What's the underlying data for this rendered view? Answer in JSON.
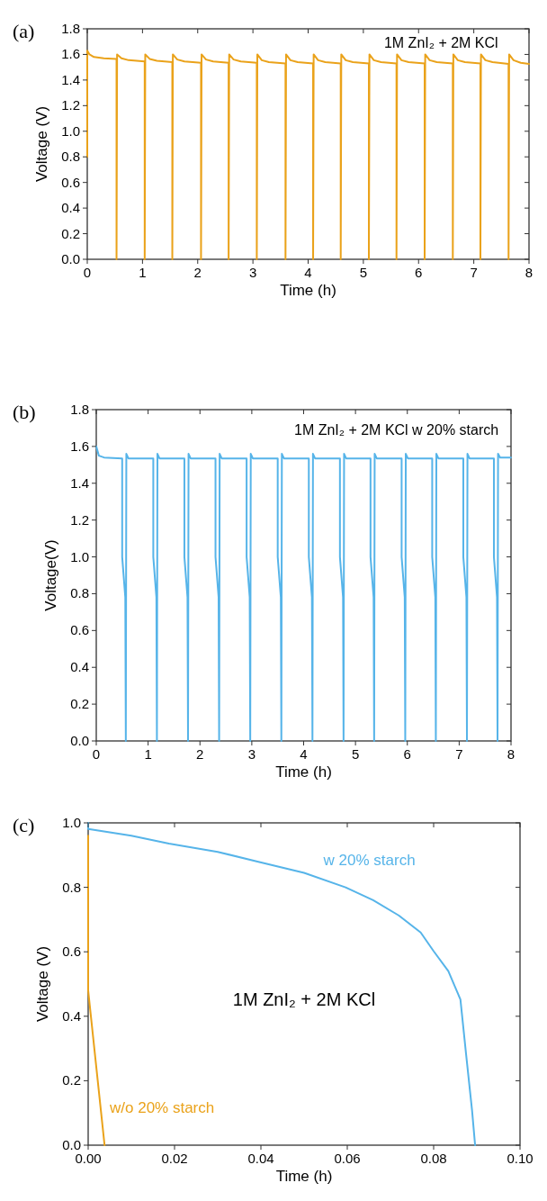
{
  "chart_data": [
    {
      "type": "line",
      "title": "(a)",
      "xlabel": "Time (h)",
      "ylabel": "Voltage (V)",
      "annotations": [
        "1M ZnI₂ + 2M KCl"
      ],
      "xlim": [
        0,
        8
      ],
      "ylim": [
        0,
        1.8
      ],
      "xticks": [
        0,
        1,
        2,
        3,
        4,
        5,
        6,
        7,
        8
      ],
      "yticks": [
        {
          "value": 0,
          "label": "0.0"
        },
        {
          "value": 0.2,
          "label": "0.2"
        },
        {
          "value": 0.4,
          "label": "0.4"
        },
        {
          "value": 0.6,
          "label": "0.6"
        },
        {
          "value": 0.8,
          "label": "0.8"
        },
        {
          "value": 1,
          "label": "1.0"
        },
        {
          "value": 1.2,
          "label": "1.2"
        },
        {
          "value": 1.4,
          "label": "1.4"
        },
        {
          "value": 1.6,
          "label": "1.6"
        },
        {
          "value": 1.8,
          "label": "1.8"
        }
      ],
      "series": [
        {
          "color": "#eaa21a",
          "x": [
            0,
            0,
            0.04,
            0.12,
            0.3,
            0.53,
            0.53,
            0.54,
            0.62,
            0.75,
            1.04,
            1.04,
            1.05,
            1.13,
            1.26,
            1.54,
            1.54,
            1.55,
            1.63,
            1.76,
            2.06,
            2.06,
            2.07,
            2.15,
            2.28,
            2.56,
            2.56,
            2.57,
            2.65,
            2.78,
            3.07,
            3.07,
            3.08,
            3.16,
            3.29,
            3.59,
            3.59,
            3.6,
            3.68,
            3.81,
            4.09,
            4.09,
            4.1,
            4.18,
            4.31,
            4.59,
            4.59,
            4.6,
            4.68,
            4.81,
            5.1,
            5.1,
            5.11,
            5.19,
            5.32,
            5.6,
            5.6,
            5.61,
            5.69,
            5.82,
            6.11,
            6.11,
            6.12,
            6.2,
            6.33,
            6.62,
            6.62,
            6.63,
            6.71,
            6.84,
            7.12,
            7.12,
            7.13,
            7.21,
            7.34,
            7.63,
            7.63,
            7.64,
            7.72,
            7.85,
            8
          ],
          "values": [
            0.8,
            1.63,
            1.6,
            1.58,
            1.57,
            1.565,
            0,
            1.6,
            1.57,
            1.555,
            1.545,
            0,
            1.6,
            1.565,
            1.55,
            1.54,
            0,
            1.6,
            1.56,
            1.545,
            1.535,
            0,
            1.6,
            1.56,
            1.545,
            1.535,
            0,
            1.6,
            1.56,
            1.545,
            1.535,
            0,
            1.6,
            1.555,
            1.54,
            1.53,
            0,
            1.6,
            1.555,
            1.54,
            1.53,
            0,
            1.6,
            1.555,
            1.54,
            1.53,
            0,
            1.6,
            1.555,
            1.54,
            1.53,
            0,
            1.6,
            1.555,
            1.54,
            1.53,
            0,
            1.6,
            1.555,
            1.54,
            1.53,
            0,
            1.6,
            1.555,
            1.54,
            1.53,
            0,
            1.6,
            1.555,
            1.54,
            1.53,
            0,
            1.6,
            1.555,
            1.54,
            1.525,
            0,
            1.6,
            1.555,
            1.535,
            1.525
          ]
        }
      ]
    },
    {
      "type": "line",
      "title": "(b)",
      "xlabel": "Time (h)",
      "ylabel": "Voltage(V)",
      "annotations": [
        "1M ZnI₂ + 2M KCl w 20% starch"
      ],
      "xlim": [
        0,
        8
      ],
      "ylim": [
        0,
        1.8
      ],
      "xticks": [
        0,
        1,
        2,
        3,
        4,
        5,
        6,
        7,
        8
      ],
      "yticks": [
        {
          "value": 0,
          "label": "0.0"
        },
        {
          "value": 0.2,
          "label": "0.2"
        },
        {
          "value": 0.4,
          "label": "0.4"
        },
        {
          "value": 0.6,
          "label": "0.6"
        },
        {
          "value": 0.8,
          "label": "0.8"
        },
        {
          "value": 1,
          "label": "1.0"
        },
        {
          "value": 1.2,
          "label": "1.2"
        },
        {
          "value": 1.4,
          "label": "1.4"
        },
        {
          "value": 1.6,
          "label": "1.6"
        },
        {
          "value": 1.8,
          "label": "1.8"
        }
      ],
      "series": [
        {
          "color": "#56b4e9",
          "x": [
            0,
            0.05,
            0.15,
            0.5,
            0.5,
            0.56,
            0.57,
            0.58,
            0.62,
            1.1,
            1.1,
            1.16,
            1.17,
            1.18,
            1.22,
            1.7,
            1.7,
            1.76,
            1.77,
            1.78,
            1.82,
            2.3,
            2.3,
            2.36,
            2.37,
            2.38,
            2.42,
            2.9,
            2.9,
            2.96,
            2.97,
            2.98,
            3.02,
            3.5,
            3.5,
            3.56,
            3.57,
            3.58,
            3.62,
            4.1,
            4.1,
            4.16,
            4.17,
            4.18,
            4.22,
            4.7,
            4.7,
            4.76,
            4.77,
            4.78,
            4.82,
            5.29,
            5.29,
            5.35,
            5.36,
            5.37,
            5.41,
            5.89,
            5.89,
            5.95,
            5.96,
            5.97,
            6.01,
            6.48,
            6.48,
            6.54,
            6.55,
            6.56,
            6.6,
            7.08,
            7.08,
            7.14,
            7.15,
            7.16,
            7.2,
            7.67,
            7.67,
            7.73,
            7.74,
            7.75,
            7.79,
            8
          ],
          "values": [
            1.6,
            1.55,
            1.54,
            1.535,
            1,
            0.78,
            0,
            1.56,
            1.535,
            1.535,
            1,
            0.78,
            0,
            1.56,
            1.535,
            1.535,
            1,
            0.78,
            0,
            1.56,
            1.535,
            1.535,
            1,
            0.78,
            0,
            1.56,
            1.535,
            1.535,
            1,
            0.78,
            0,
            1.56,
            1.535,
            1.535,
            1,
            0.78,
            0,
            1.56,
            1.535,
            1.535,
            1,
            0.78,
            0,
            1.56,
            1.535,
            1.535,
            1,
            0.78,
            0,
            1.56,
            1.535,
            1.535,
            1,
            0.78,
            0,
            1.56,
            1.535,
            1.535,
            1,
            0.78,
            0,
            1.56,
            1.535,
            1.535,
            1,
            0.78,
            0,
            1.56,
            1.535,
            1.535,
            1,
            0.78,
            0,
            1.56,
            1.535,
            1.535,
            1,
            0.78,
            0,
            1.56,
            1.54,
            1.54
          ]
        }
      ]
    },
    {
      "type": "line",
      "title": "(c)",
      "xlabel": "Time (h)",
      "ylabel": "Voltage (V)",
      "annotations": [
        "1M ZnI₂ + 2M KCl"
      ],
      "xlim": [
        0,
        0.1
      ],
      "ylim": [
        0,
        1
      ],
      "xticks": [
        {
          "value": 0,
          "label": "0.00"
        },
        {
          "value": 0.02,
          "label": "0.02"
        },
        {
          "value": 0.04,
          "label": "0.04"
        },
        {
          "value": 0.06,
          "label": "0.06"
        },
        {
          "value": 0.08,
          "label": "0.08"
        },
        {
          "value": 0.1,
          "label": "0.10"
        }
      ],
      "yticks": [
        {
          "value": 0,
          "label": "0.0"
        },
        {
          "value": 0.2,
          "label": "0.2"
        },
        {
          "value": 0.4,
          "label": "0.4"
        },
        {
          "value": 0.6,
          "label": "0.6"
        },
        {
          "value": 0.8,
          "label": "0.8"
        },
        {
          "value": 1,
          "label": "1.0"
        }
      ],
      "series": [
        {
          "name": "w 20% starch",
          "color": "#56b4e9",
          "x": [
            0,
            0,
            0.01,
            0.0187,
            0.03,
            0.0392,
            0.05,
            0.0596,
            0.066,
            0.0719,
            0.077,
            0.08,
            0.0834,
            0.0862,
            0.0875,
            0.0889,
            0.0896
          ],
          "values": [
            1,
            0.981,
            0.96,
            0.936,
            0.91,
            0.88,
            0.845,
            0.8,
            0.76,
            0.713,
            0.66,
            0.602,
            0.54,
            0.452,
            0.284,
            0.107,
            0
          ]
        },
        {
          "name": "w/o 20% starch",
          "color": "#eaa21a",
          "x": [
            0,
            0,
            0.0038
          ],
          "values": [
            0.96,
            0.48,
            0
          ]
        }
      ]
    }
  ]
}
